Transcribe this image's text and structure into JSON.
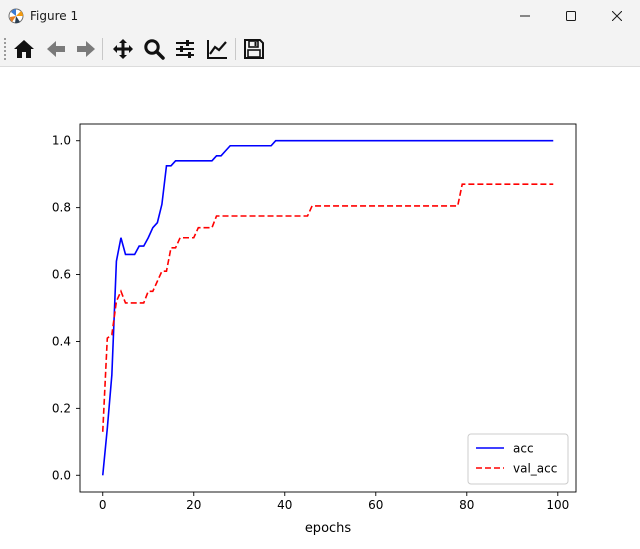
{
  "window": {
    "title": "Figure 1"
  },
  "toolbar": {
    "buttons": [
      {
        "name": "home-icon",
        "label": "Home"
      },
      {
        "name": "back-icon",
        "label": "Back"
      },
      {
        "name": "forward-icon",
        "label": "Forward"
      },
      {
        "name": "pan-icon",
        "label": "Pan"
      },
      {
        "name": "zoom-icon",
        "label": "Zoom"
      },
      {
        "name": "configure-subplots-icon",
        "label": "Subplots"
      },
      {
        "name": "edit-axis-icon",
        "label": "Customize"
      },
      {
        "name": "save-icon",
        "label": "Save"
      }
    ]
  },
  "chart_data": {
    "type": "line",
    "xlabel": "epochs",
    "ylabel": "",
    "title": "",
    "xlim": [
      -5,
      104
    ],
    "ylim": [
      -0.05,
      1.05
    ],
    "x_ticks": [
      0,
      20,
      40,
      60,
      80,
      100
    ],
    "y_ticks": [
      0.0,
      0.2,
      0.4,
      0.6,
      0.8,
      1.0
    ],
    "x_tick_labels": [
      "0",
      "20",
      "40",
      "60",
      "80",
      "100"
    ],
    "y_tick_labels": [
      "0.0",
      "0.2",
      "0.4",
      "0.6",
      "0.8",
      "1.0"
    ],
    "grid": false,
    "legend": "bottom-right",
    "series": [
      {
        "name": "acc",
        "color": "#0000ff",
        "style": "solid",
        "points": [
          [
            0,
            0.0
          ],
          [
            1,
            0.14
          ],
          [
            2,
            0.3
          ],
          [
            3,
            0.64
          ],
          [
            4,
            0.71
          ],
          [
            5,
            0.66
          ],
          [
            6,
            0.66
          ],
          [
            7,
            0.66
          ],
          [
            8,
            0.685
          ],
          [
            9,
            0.685
          ],
          [
            10,
            0.71
          ],
          [
            11,
            0.74
          ],
          [
            12,
            0.755
          ],
          [
            13,
            0.81
          ],
          [
            14,
            0.925
          ],
          [
            15,
            0.925
          ],
          [
            16,
            0.94
          ],
          [
            17,
            0.94
          ],
          [
            22,
            0.94
          ],
          [
            23,
            0.94
          ],
          [
            24,
            0.94
          ],
          [
            25,
            0.955
          ],
          [
            26,
            0.955
          ],
          [
            27,
            0.97
          ],
          [
            28,
            0.985
          ],
          [
            37,
            0.985
          ],
          [
            38,
            1.0
          ],
          [
            99,
            1.0
          ]
        ]
      },
      {
        "name": "val_acc",
        "color": "#ff0000",
        "style": "dashed",
        "points": [
          [
            0,
            0.13
          ],
          [
            1,
            0.41
          ],
          [
            2,
            0.42
          ],
          [
            3,
            0.52
          ],
          [
            4,
            0.55
          ],
          [
            5,
            0.515
          ],
          [
            9,
            0.515
          ],
          [
            10,
            0.55
          ],
          [
            11,
            0.55
          ],
          [
            12,
            0.58
          ],
          [
            13,
            0.61
          ],
          [
            14,
            0.61
          ],
          [
            15,
            0.68
          ],
          [
            16,
            0.68
          ],
          [
            17,
            0.71
          ],
          [
            20,
            0.71
          ],
          [
            21,
            0.74
          ],
          [
            23,
            0.74
          ],
          [
            24,
            0.74
          ],
          [
            25,
            0.775
          ],
          [
            45,
            0.775
          ],
          [
            46,
            0.805
          ],
          [
            78,
            0.805
          ],
          [
            79,
            0.87
          ],
          [
            99,
            0.87
          ]
        ]
      }
    ]
  }
}
